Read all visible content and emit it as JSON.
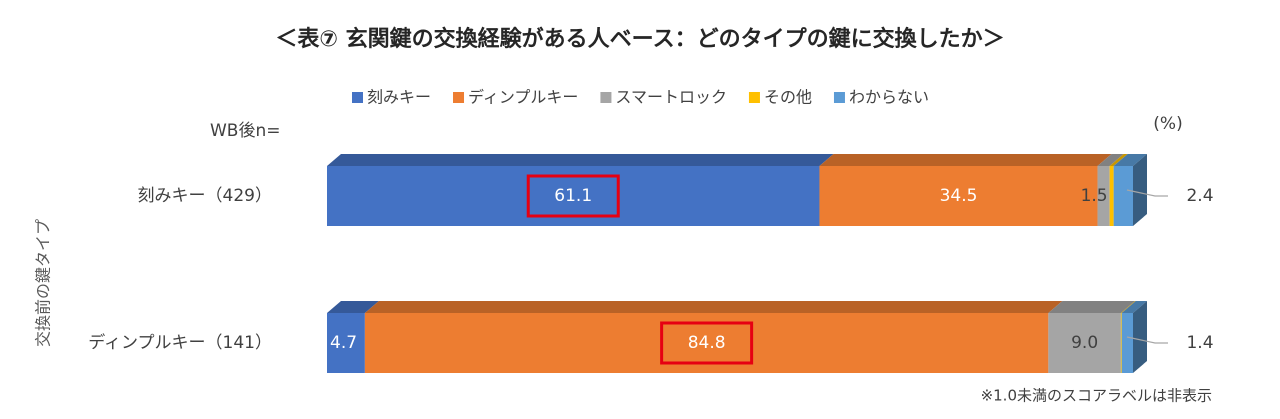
{
  "chart_data": {
    "type": "stacked-bar-horizontal",
    "title": "＜表⑦ 玄関鍵の交換経験がある人ベース：どのタイプの鍵に交換したか＞",
    "n_label": "WB後n=",
    "unit_label": "(%)",
    "y_axis_label": "交換前の鍵タイプ",
    "footnote": "※1.0未満のスコアラベルは非表示",
    "categories": [
      "刻みキー（429）",
      "ディンプルキー（141）"
    ],
    "xlim": [
      0,
      100
    ],
    "series": [
      {
        "name": "刻みキー",
        "color": "#4472c4",
        "values": [
          61.1,
          4.7
        ],
        "value_labels": [
          "61.1",
          "4.7"
        ],
        "highlight": [
          true,
          false
        ]
      },
      {
        "name": "ディンプルキー",
        "color": "#ed7d31",
        "values": [
          34.5,
          84.8
        ],
        "value_labels": [
          "34.5",
          "84.8"
        ],
        "highlight": [
          false,
          true
        ]
      },
      {
        "name": "スマートロック",
        "color": "#a5a5a5",
        "values": [
          1.5,
          9.0
        ],
        "value_labels": [
          "1.5",
          "9.0"
        ],
        "highlight": [
          false,
          false
        ]
      },
      {
        "name": "その他",
        "color": "#ffc000",
        "values": [
          0.5,
          0.1
        ],
        "value_labels": [
          null,
          null
        ],
        "highlight": [
          false,
          false
        ]
      },
      {
        "name": "わからない",
        "color": "#5b9bd5",
        "values": [
          2.4,
          1.4
        ],
        "value_labels": [
          "2.4",
          "1.4"
        ],
        "highlight": [
          false,
          false
        ]
      }
    ]
  }
}
